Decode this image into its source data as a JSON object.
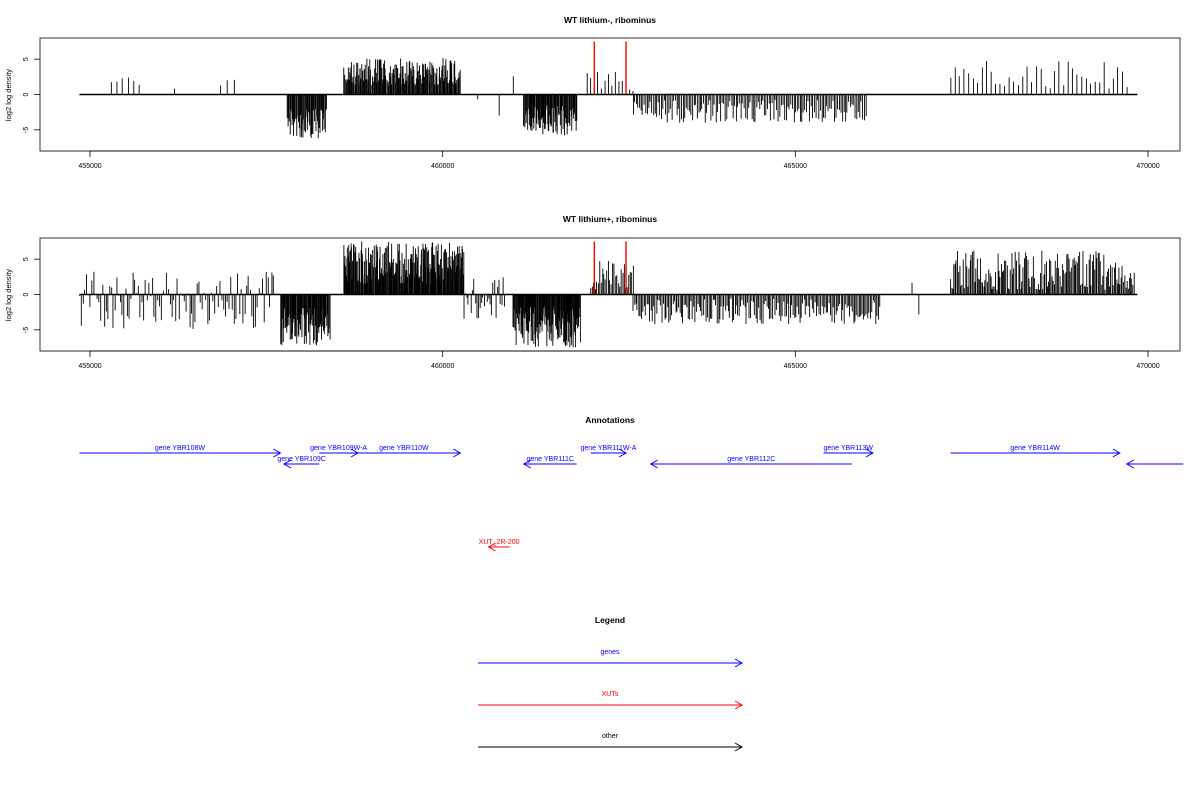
{
  "chart_data": [
    {
      "type": "bar",
      "title": "WT lithium-, ribominus",
      "ylabel": "log2 log density",
      "xlabel": "",
      "xlim": [
        455000,
        470000
      ],
      "ylim": [
        -8,
        8
      ],
      "x_ticks": [
        455000,
        460000,
        465000,
        470000
      ],
      "y_ticks": [
        -5,
        0,
        5
      ],
      "baseline": {
        "x": [
          454850,
          469850
        ],
        "y": 0
      },
      "bar_color": "#000000",
      "highlight_color": "#ff0000",
      "highlights": [
        {
          "x": 462150,
          "y_from": 0,
          "y_to": 7.5
        },
        {
          "x": 462600,
          "y_from": 0,
          "y_to": 7.5
        }
      ],
      "segments": [
        {
          "x_start": 455300,
          "x_end": 455700,
          "y_min": 1.2,
          "y_max": 2.6,
          "count": 6
        },
        {
          "x_start": 456200,
          "x_end": 456250,
          "y_min": 0.8,
          "y_max": 1.1,
          "count": 1
        },
        {
          "x_start": 456850,
          "x_end": 457050,
          "y_min": 0.8,
          "y_max": 2.4,
          "count": 3
        },
        {
          "x_start": 457800,
          "x_end": 458350,
          "y_min": -6.2,
          "y_max": -1.8,
          "count": 60
        },
        {
          "x_start": 458600,
          "x_end": 460250,
          "y_min": 1.2,
          "y_max": 5.2,
          "count": 170
        },
        {
          "x_start": 460500,
          "x_end": 460520,
          "y_min": -0.8,
          "y_max": -0.6,
          "count": 1
        },
        {
          "x_start": 460800,
          "x_end": 460820,
          "y_min": -3.0,
          "y_max": -2.8,
          "count": 1
        },
        {
          "x_start": 461000,
          "x_end": 461020,
          "y_min": 2.4,
          "y_max": 2.6,
          "count": 1
        },
        {
          "x_start": 461150,
          "x_end": 461900,
          "y_min": -5.8,
          "y_max": -1.5,
          "count": 90
        },
        {
          "x_start": 462050,
          "x_end": 462700,
          "y_min": 0.4,
          "y_max": 3.2,
          "count": 14
        },
        {
          "x_start": 462700,
          "x_end": 466000,
          "y_min": -4.0,
          "y_max": -0.8,
          "count": 150
        },
        {
          "x_start": 467200,
          "x_end": 469700,
          "y_min": 0.8,
          "y_max": 4.8,
          "count": 40
        }
      ]
    },
    {
      "type": "bar",
      "title": "WT lithium+, ribominus",
      "ylabel": "log2 log density",
      "xlabel": "",
      "xlim": [
        455000,
        470000
      ],
      "ylim": [
        -8,
        8
      ],
      "x_ticks": [
        455000,
        460000,
        465000,
        470000
      ],
      "y_ticks": [
        -5,
        0,
        5
      ],
      "baseline": {
        "x": [
          454850,
          469850
        ],
        "y": 0
      },
      "bar_color": "#000000",
      "highlight_color": "#ff0000",
      "highlights": [
        {
          "x": 462150,
          "y_from": 0,
          "y_to": 7.5
        },
        {
          "x": 462600,
          "y_from": 0,
          "y_to": 7.5
        }
      ],
      "segments": [
        {
          "x_start": 454850,
          "x_end": 457600,
          "y_min": -5.0,
          "y_max": 3.4,
          "count": 110
        },
        {
          "x_start": 457700,
          "x_end": 458400,
          "y_min": -7.2,
          "y_max": -1.8,
          "count": 90
        },
        {
          "x_start": 458600,
          "x_end": 460300,
          "y_min": 1.5,
          "y_max": 7.5,
          "count": 220
        },
        {
          "x_start": 460300,
          "x_end": 460900,
          "y_min": -3.5,
          "y_max": 2.5,
          "count": 30
        },
        {
          "x_start": 461000,
          "x_end": 461950,
          "y_min": -7.5,
          "y_max": -1.5,
          "count": 130
        },
        {
          "x_start": 462100,
          "x_end": 462700,
          "y_min": 0.6,
          "y_max": 4.8,
          "count": 30
        },
        {
          "x_start": 462700,
          "x_end": 466200,
          "y_min": -4.2,
          "y_max": -0.6,
          "count": 180
        },
        {
          "x_start": 466650,
          "x_end": 466670,
          "y_min": 1.6,
          "y_max": 1.8,
          "count": 1
        },
        {
          "x_start": 466750,
          "x_end": 466770,
          "y_min": -3.0,
          "y_max": -2.8,
          "count": 1
        },
        {
          "x_start": 467200,
          "x_end": 469800,
          "y_min": 0.6,
          "y_max": 6.2,
          "count": 160
        }
      ]
    }
  ],
  "annotations": {
    "title": "Annotations",
    "xlim": [
      455000,
      470000
    ],
    "features": [
      {
        "label": "gene YBR108W",
        "start": 454850,
        "end": 457700,
        "strand": "+",
        "row": 0,
        "kind": "gene"
      },
      {
        "label": "gene YBR109C",
        "start": 457750,
        "end": 458250,
        "strand": "-",
        "row": 1,
        "kind": "gene"
      },
      {
        "label": "gene YBR109W-A",
        "start": 458250,
        "end": 458800,
        "strand": "+",
        "row": 0,
        "kind": "gene"
      },
      {
        "label": "gene YBR110W",
        "start": 458650,
        "end": 460250,
        "strand": "+",
        "row": 0,
        "kind": "gene"
      },
      {
        "label": "gene YBR111C",
        "start": 461150,
        "end": 461900,
        "strand": "-",
        "row": 1,
        "kind": "gene"
      },
      {
        "label": "gene YBR111W-A",
        "start": 462100,
        "end": 462600,
        "strand": "+",
        "row": 0,
        "kind": "gene"
      },
      {
        "label": "gene YBR112C",
        "start": 462950,
        "end": 465800,
        "strand": "-",
        "row": 1,
        "kind": "gene"
      },
      {
        "label": "gene YBR113W",
        "start": 465400,
        "end": 466100,
        "strand": "+",
        "row": 0,
        "kind": "gene"
      },
      {
        "label": "gene YBR114W",
        "start": 467200,
        "end": 469600,
        "strand": "+",
        "row": 0,
        "kind": "gene"
      },
      {
        "label": "",
        "start": 469700,
        "end": 470500,
        "strand": "-",
        "row": 1,
        "kind": "gene"
      },
      {
        "label": "XUT_2R-200",
        "start": 460650,
        "end": 460950,
        "strand": "-",
        "row": 2,
        "kind": "xut"
      }
    ],
    "colors": {
      "gene": "#0000ff",
      "xut": "#ff0000",
      "other": "#000000"
    }
  },
  "legend": {
    "title": "Legend",
    "items": [
      {
        "label": "genes",
        "color": "#0000ff"
      },
      {
        "label": "XUTs",
        "color": "#ff0000"
      },
      {
        "label": "other",
        "color": "#000000"
      }
    ]
  }
}
